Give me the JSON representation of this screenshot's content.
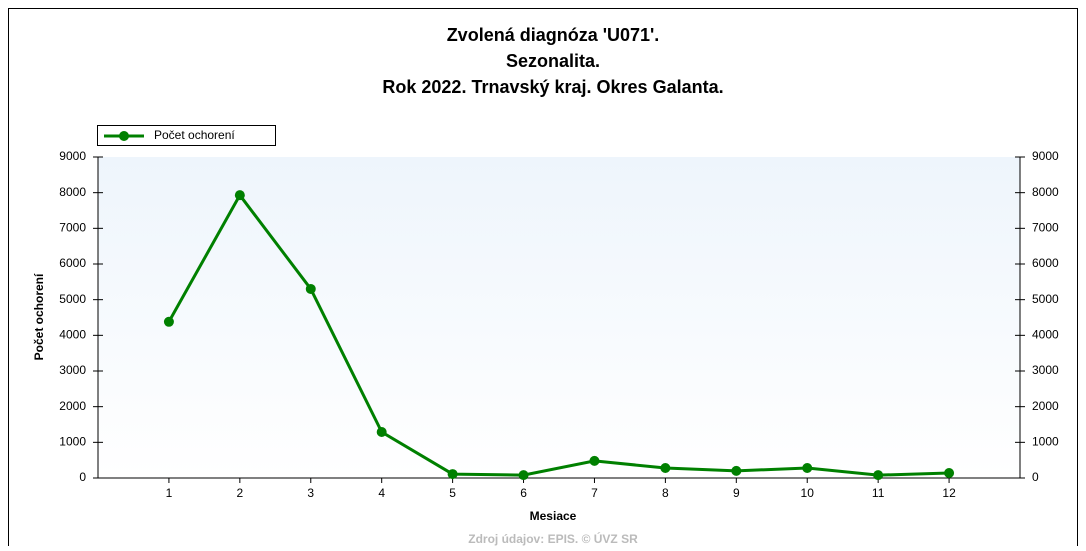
{
  "chart_data": {
    "type": "line",
    "title": [
      "Zvolená diagnóza 'U071'.",
      "Sezonalita.",
      "Rok 2022. Trnavský kraj. Okres Galanta."
    ],
    "x_label": "Mesiace",
    "y_label": "Počet ochorení",
    "source": "Zdroj údajov: EPIS. © ÚVZ SR",
    "x": [
      1,
      2,
      3,
      4,
      5,
      6,
      7,
      8,
      9,
      10,
      11,
      12
    ],
    "series": [
      {
        "name": "Počet ochorení",
        "color": "#008000",
        "values": [
          4380,
          7930,
          5300,
          1290,
          110,
          80,
          480,
          280,
          200,
          280,
          80,
          140
        ]
      }
    ],
    "xlim": [
      0,
      13
    ],
    "xticks": [
      1,
      2,
      3,
      4,
      5,
      6,
      7,
      8,
      9,
      10,
      11,
      12
    ],
    "ylim": [
      0,
      9000
    ],
    "yticks": [
      0,
      1000,
      2000,
      3000,
      4000,
      5000,
      6000,
      7000,
      8000,
      9000
    ],
    "y2lim": [
      0,
      9000
    ],
    "y2ticks": [
      0,
      1000,
      2000,
      3000,
      4000,
      5000,
      6000,
      7000,
      8000,
      9000
    ],
    "legend": "top-left"
  }
}
